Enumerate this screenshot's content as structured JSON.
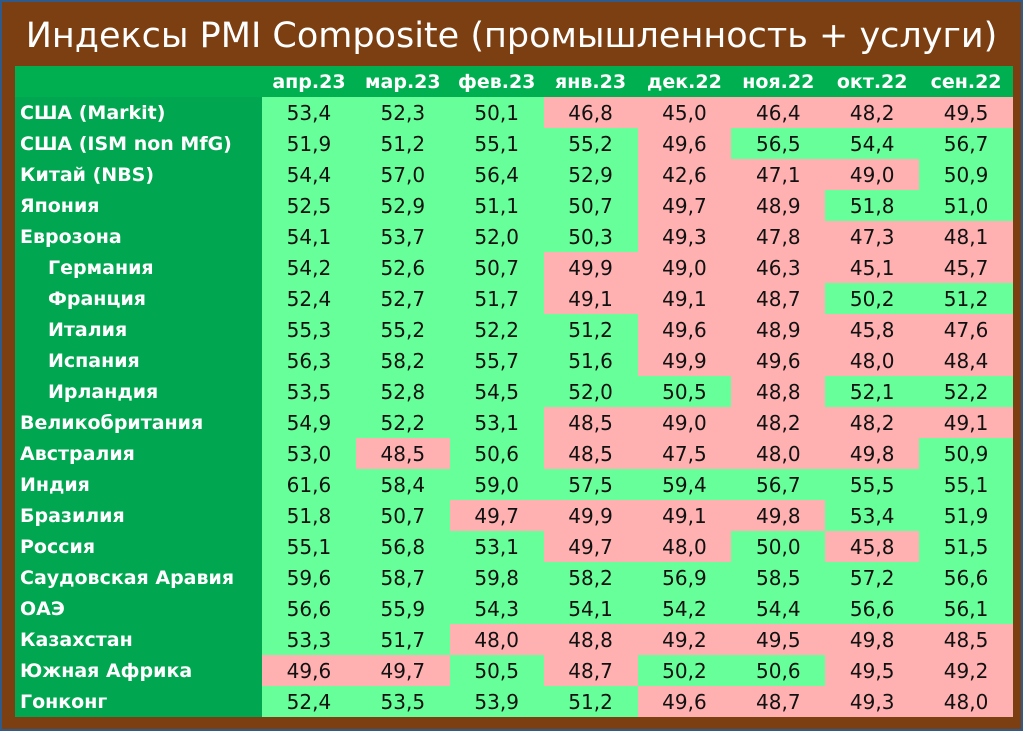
{
  "title": "Индексы PMI Composite (промышленность + услуги)",
  "colors": {
    "above_50": "#66ff99",
    "below_50": "#ffb0b0",
    "header": "#00b050",
    "frame": "#7b3f12"
  },
  "chart_data": {
    "type": "table",
    "title": "Индексы PMI Composite (промышленность + услуги)",
    "columns": [
      "апр.23",
      "мар.23",
      "фев.23",
      "янв.23",
      "дек.22",
      "ноя.22",
      "окт.22",
      "сен.22"
    ],
    "rows": [
      {
        "country": "США (Markit)",
        "sub": false,
        "values": [
          "53,4",
          "52,3",
          "50,1",
          "46,8",
          "45,0",
          "46,4",
          "48,2",
          "49,5"
        ],
        "below": [
          false,
          false,
          false,
          true,
          true,
          true,
          true,
          true
        ]
      },
      {
        "country": "США (ISM non MfG)",
        "sub": false,
        "values": [
          "51,9",
          "51,2",
          "55,1",
          "55,2",
          "49,6",
          "56,5",
          "54,4",
          "56,7"
        ],
        "below": [
          false,
          false,
          false,
          false,
          true,
          false,
          false,
          false
        ]
      },
      {
        "country": "Китай (NBS)",
        "sub": false,
        "values": [
          "54,4",
          "57,0",
          "56,4",
          "52,9",
          "42,6",
          "47,1",
          "49,0",
          "50,9"
        ],
        "below": [
          false,
          false,
          false,
          false,
          true,
          true,
          true,
          false
        ]
      },
      {
        "country": "Япония",
        "sub": false,
        "values": [
          "52,5",
          "52,9",
          "51,1",
          "50,7",
          "49,7",
          "48,9",
          "51,8",
          "51,0"
        ],
        "below": [
          false,
          false,
          false,
          false,
          true,
          true,
          false,
          false
        ]
      },
      {
        "country": "Еврозона",
        "sub": false,
        "values": [
          "54,1",
          "53,7",
          "52,0",
          "50,3",
          "49,3",
          "47,8",
          "47,3",
          "48,1"
        ],
        "below": [
          false,
          false,
          false,
          false,
          true,
          true,
          true,
          true
        ]
      },
      {
        "country": "Германия",
        "sub": true,
        "values": [
          "54,2",
          "52,6",
          "50,7",
          "49,9",
          "49,0",
          "46,3",
          "45,1",
          "45,7"
        ],
        "below": [
          false,
          false,
          false,
          true,
          true,
          true,
          true,
          true
        ]
      },
      {
        "country": "Франция",
        "sub": true,
        "values": [
          "52,4",
          "52,7",
          "51,7",
          "49,1",
          "49,1",
          "48,7",
          "50,2",
          "51,2"
        ],
        "below": [
          false,
          false,
          false,
          true,
          true,
          true,
          false,
          false
        ]
      },
      {
        "country": "Италия",
        "sub": true,
        "values": [
          "55,3",
          "55,2",
          "52,2",
          "51,2",
          "49,6",
          "48,9",
          "45,8",
          "47,6"
        ],
        "below": [
          false,
          false,
          false,
          false,
          true,
          true,
          true,
          true
        ]
      },
      {
        "country": "Испания",
        "sub": true,
        "values": [
          "56,3",
          "58,2",
          "55,7",
          "51,6",
          "49,9",
          "49,6",
          "48,0",
          "48,4"
        ],
        "below": [
          false,
          false,
          false,
          false,
          true,
          true,
          true,
          true
        ]
      },
      {
        "country": "Ирландия",
        "sub": true,
        "values": [
          "53,5",
          "52,8",
          "54,5",
          "52,0",
          "50,5",
          "48,8",
          "52,1",
          "52,2"
        ],
        "below": [
          false,
          false,
          false,
          false,
          false,
          true,
          false,
          false
        ]
      },
      {
        "country": "Великобритания",
        "sub": false,
        "values": [
          "54,9",
          "52,2",
          "53,1",
          "48,5",
          "49,0",
          "48,2",
          "48,2",
          "49,1"
        ],
        "below": [
          false,
          false,
          false,
          true,
          true,
          true,
          true,
          true
        ]
      },
      {
        "country": "Австралия",
        "sub": false,
        "values": [
          "53,0",
          "48,5",
          "50,6",
          "48,5",
          "47,5",
          "48,0",
          "49,8",
          "50,9"
        ],
        "below": [
          false,
          true,
          false,
          true,
          true,
          true,
          true,
          false
        ]
      },
      {
        "country": "Индия",
        "sub": false,
        "values": [
          "61,6",
          "58,4",
          "59,0",
          "57,5",
          "59,4",
          "56,7",
          "55,5",
          "55,1"
        ],
        "below": [
          false,
          false,
          false,
          false,
          false,
          false,
          false,
          false
        ]
      },
      {
        "country": "Бразилия",
        "sub": false,
        "values": [
          "51,8",
          "50,7",
          "49,7",
          "49,9",
          "49,1",
          "49,8",
          "53,4",
          "51,9"
        ],
        "below": [
          false,
          false,
          true,
          true,
          true,
          true,
          false,
          false
        ]
      },
      {
        "country": "Россия",
        "sub": false,
        "values": [
          "55,1",
          "56,8",
          "53,1",
          "49,7",
          "48,0",
          "50,0",
          "45,8",
          "51,5"
        ],
        "below": [
          false,
          false,
          false,
          true,
          true,
          false,
          true,
          false
        ]
      },
      {
        "country": "Саудовская Аравия",
        "sub": false,
        "values": [
          "59,6",
          "58,7",
          "59,8",
          "58,2",
          "56,9",
          "58,5",
          "57,2",
          "56,6"
        ],
        "below": [
          false,
          false,
          false,
          false,
          false,
          false,
          false,
          false
        ]
      },
      {
        "country": "ОАЭ",
        "sub": false,
        "values": [
          "56,6",
          "55,9",
          "54,3",
          "54,1",
          "54,2",
          "54,4",
          "56,6",
          "56,1"
        ],
        "below": [
          false,
          false,
          false,
          false,
          false,
          false,
          false,
          false
        ]
      },
      {
        "country": "Казахстан",
        "sub": false,
        "values": [
          "53,3",
          "51,7",
          "48,0",
          "48,8",
          "49,2",
          "49,5",
          "49,8",
          "48,5"
        ],
        "below": [
          false,
          false,
          true,
          true,
          true,
          true,
          true,
          true
        ]
      },
      {
        "country": "Южная Африка",
        "sub": false,
        "values": [
          "49,6",
          "49,7",
          "50,5",
          "48,7",
          "50,2",
          "50,6",
          "49,5",
          "49,2"
        ],
        "below": [
          true,
          true,
          false,
          true,
          false,
          false,
          true,
          true
        ]
      },
      {
        "country": "Гонконг",
        "sub": false,
        "values": [
          "52,4",
          "53,5",
          "53,9",
          "51,2",
          "49,6",
          "48,7",
          "49,3",
          "48,0"
        ],
        "below": [
          false,
          false,
          false,
          false,
          true,
          true,
          true,
          true
        ]
      }
    ]
  }
}
